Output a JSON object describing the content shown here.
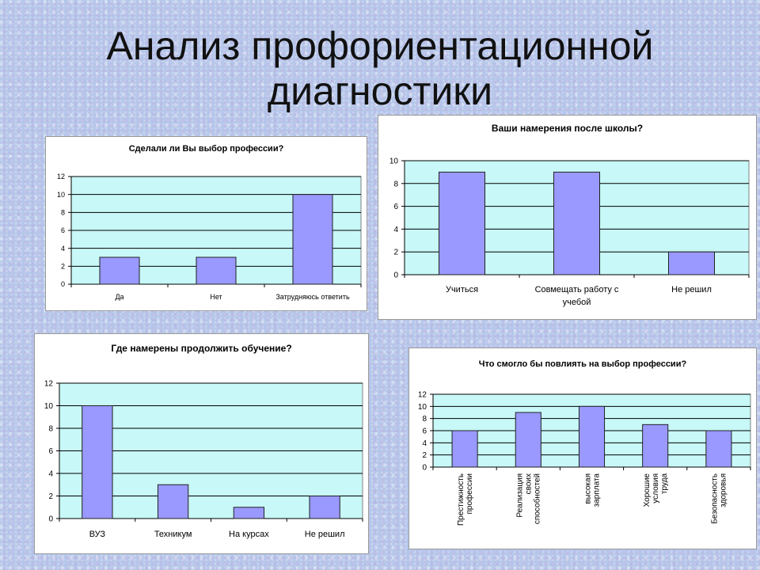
{
  "slide": {
    "title_line1": "Анализ профориентационной",
    "title_line2": "диагностики"
  },
  "colors": {
    "plot_bg": "#c8f8f8",
    "bar": "#9999ff",
    "bar_border": "#222222",
    "grid": "#000000"
  },
  "chart_data": [
    {
      "type": "bar",
      "title": "Сделали ли Вы выбор профессии?",
      "categories": [
        "Да",
        "Нет",
        "Затрудняюсь ответить"
      ],
      "values": [
        3,
        3,
        10
      ],
      "ylim": [
        0,
        12
      ],
      "yticks": [
        0,
        2,
        4,
        6,
        8,
        10,
        12
      ],
      "grid": true,
      "legend": "none"
    },
    {
      "type": "bar",
      "title": "Ваши намерения после школы?",
      "categories": [
        "Учиться",
        "Совмещать работу с учебой",
        "Не решил"
      ],
      "values": [
        9,
        9,
        2
      ],
      "ylim": [
        0,
        10
      ],
      "yticks": [
        0,
        2,
        4,
        6,
        8,
        10
      ],
      "grid": true,
      "legend": "none"
    },
    {
      "type": "bar",
      "title": "Где намерены продолжить обучение?",
      "categories": [
        "ВУЗ",
        "Техникум",
        "На курсах",
        "Не решил"
      ],
      "values": [
        10,
        3,
        1,
        2
      ],
      "ylim": [
        0,
        12
      ],
      "yticks": [
        0,
        2,
        4,
        6,
        8,
        10,
        12
      ],
      "grid": true,
      "legend": "none"
    },
    {
      "type": "bar",
      "title": "Что смогло бы повлиять на выбор профессии?",
      "categories": [
        "Престижность профессии",
        "Реализация своих способностей",
        "высокая зарплата",
        "Хорошие условия труда",
        "Безопасность здоровья"
      ],
      "values": [
        6,
        9,
        10,
        7,
        6
      ],
      "ylim": [
        0,
        12
      ],
      "yticks": [
        0,
        2,
        4,
        6,
        8,
        10,
        12
      ],
      "grid": true,
      "legend": "none"
    }
  ]
}
